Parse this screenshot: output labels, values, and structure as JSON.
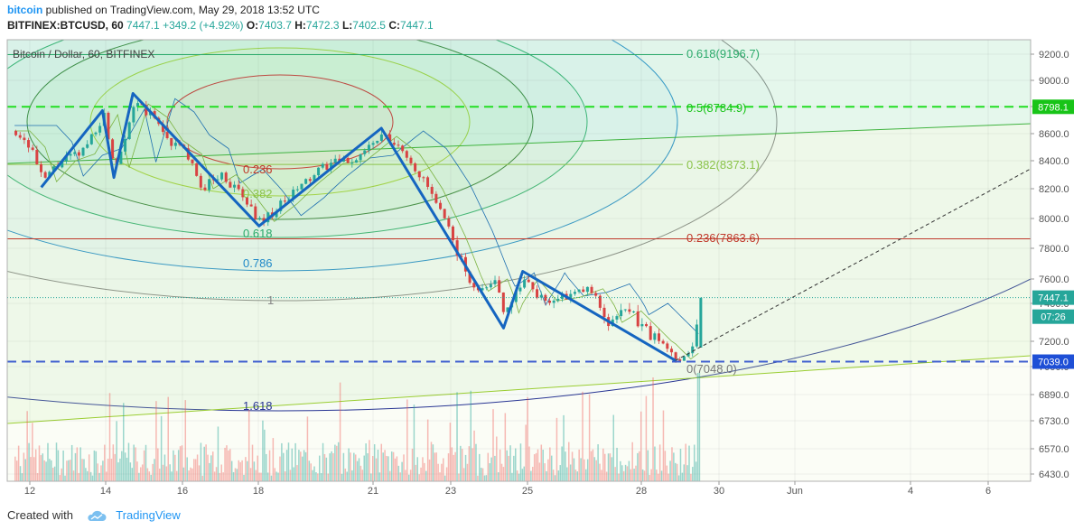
{
  "header": {
    "author": "bitcoin",
    "published_text": "published on TradingView.com, May 29, 2018 13:52 UTC",
    "symbol": "BITFINEX:BTCUSD, 60",
    "last": "7447.1",
    "change": "+349.2 (+4.92%)",
    "o_label": "O:",
    "o": "7403.7",
    "h_label": "H:",
    "h": "7472.3",
    "l_label": "L:",
    "l": "7402.5",
    "c_label": "C:",
    "c": "7447.1"
  },
  "footer": {
    "created_with": "Created with",
    "brand": "TradingView"
  },
  "colors": {
    "up": "#26a69a",
    "down": "#ef5350",
    "pattern": "#1565c0",
    "price_tag": "#26a69a",
    "level_tag": "#1e4fd6"
  },
  "chart_data": {
    "type": "candlestick",
    "title": "Bitcoin / Dollar, 60, BITFINEX",
    "ylim": [
      6400,
      9300
    ],
    "y_ticks": [
      "9200.0",
      "9000.0",
      "8800.0",
      "8600.0",
      "8400.0",
      "8200.0",
      "8000.0",
      "7800.0",
      "7600.0",
      "7400.0",
      "7200.0",
      "7000.0",
      "6890.0",
      "6730.0",
      "6570.0",
      "6430.0"
    ],
    "x_ticks": [
      "12",
      "14",
      "16",
      "18",
      "21",
      "23",
      "25",
      "28",
      "30",
      "Jun",
      "4",
      "6"
    ],
    "price_tags": [
      {
        "label": "8798.1",
        "value": 8798.1,
        "color": "#18c418"
      },
      {
        "label": "7447.1",
        "value": 7447.1,
        "color": "#26a69a"
      },
      {
        "label": "07:26",
        "value": 7330,
        "color": "#26a69a"
      },
      {
        "label": "7039.0",
        "value": 7039.0,
        "color": "#1e4fd6"
      }
    ],
    "fib_levels": [
      {
        "label": "0.618(9196.7)",
        "value": 9196.7,
        "color": "#2aaa6a"
      },
      {
        "label": "0.5(8784.9)",
        "value": 8784.9,
        "color": "#18c418"
      },
      {
        "label": "0.382(8373.1)",
        "value": 8373.1,
        "color": "#8bc34a"
      },
      {
        "label": "0.236(7863.6)",
        "value": 7863.6,
        "color": "#c0392b"
      },
      {
        "label": "0(7048.0)",
        "value": 7048.0,
        "color": "#777777"
      }
    ],
    "fib_circle_labels": [
      {
        "label": "0.236",
        "color": "#c0392b"
      },
      {
        "label": "0.382",
        "color": "#8bc34a"
      },
      {
        "label": "0.618",
        "color": "#2aaa6a"
      },
      {
        "label": "0.786",
        "color": "#1e88c8"
      },
      {
        "label": "1",
        "color": "#888888"
      },
      {
        "label": "1.618",
        "color": "#283593"
      }
    ],
    "pattern_points": [
      {
        "day": 12.3,
        "price": 8210
      },
      {
        "day": 13.9,
        "price": 8770
      },
      {
        "day": 14.2,
        "price": 8280
      },
      {
        "day": 14.7,
        "price": 8900
      },
      {
        "day": 18.0,
        "price": 7950
      },
      {
        "day": 21.2,
        "price": 8640
      },
      {
        "day": 24.4,
        "price": 7270
      },
      {
        "day": 24.9,
        "price": 7650
      },
      {
        "day": 28.9,
        "price": 7048
      }
    ],
    "projection": {
      "from": {
        "day": 28.9,
        "price": 7048
      },
      "to": {
        "day": 41.2,
        "price": 8798
      }
    },
    "close_series": [
      {
        "day": 11.6,
        "price": 8620
      },
      {
        "day": 12.0,
        "price": 8500
      },
      {
        "day": 12.3,
        "price": 8250
      },
      {
        "day": 12.8,
        "price": 8400
      },
      {
        "day": 13.3,
        "price": 8450
      },
      {
        "day": 13.9,
        "price": 8740
      },
      {
        "day": 14.2,
        "price": 8350
      },
      {
        "day": 14.7,
        "price": 8820
      },
      {
        "day": 15.2,
        "price": 8720
      },
      {
        "day": 15.6,
        "price": 8550
      },
      {
        "day": 16.1,
        "price": 8450
      },
      {
        "day": 16.4,
        "price": 8200
      },
      {
        "day": 17.0,
        "price": 8300
      },
      {
        "day": 17.5,
        "price": 8150
      },
      {
        "day": 18.0,
        "price": 7980
      },
      {
        "day": 18.6,
        "price": 8100
      },
      {
        "day": 19.2,
        "price": 8250
      },
      {
        "day": 19.8,
        "price": 8380
      },
      {
        "day": 20.4,
        "price": 8400
      },
      {
        "day": 21.2,
        "price": 8580
      },
      {
        "day": 21.8,
        "price": 8450
      },
      {
        "day": 22.4,
        "price": 8200
      },
      {
        "day": 23.0,
        "price": 7880
      },
      {
        "day": 23.6,
        "price": 7500
      },
      {
        "day": 24.1,
        "price": 7600
      },
      {
        "day": 24.4,
        "price": 7350
      },
      {
        "day": 24.9,
        "price": 7600
      },
      {
        "day": 25.4,
        "price": 7420
      },
      {
        "day": 26.0,
        "price": 7450
      },
      {
        "day": 26.6,
        "price": 7520
      },
      {
        "day": 27.1,
        "price": 7300
      },
      {
        "day": 27.6,
        "price": 7360
      },
      {
        "day": 28.0,
        "price": 7280
      },
      {
        "day": 28.5,
        "price": 7180
      },
      {
        "day": 28.9,
        "price": 7060
      },
      {
        "day": 29.3,
        "price": 7150
      },
      {
        "day": 29.55,
        "price": 7447
      }
    ]
  }
}
